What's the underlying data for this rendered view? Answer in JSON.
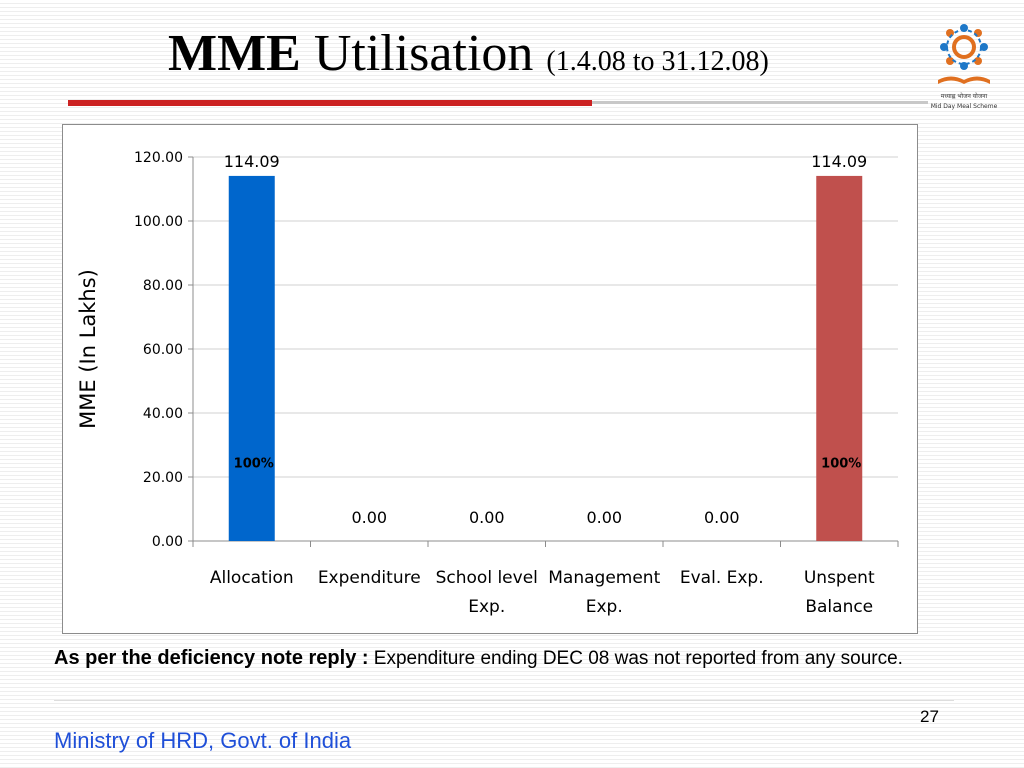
{
  "slide": {
    "title_main_bold": "MME",
    "title_main_rest": " Utilisation",
    "title_range": "(1.4.08 to 31.12.08)",
    "logo_text_hindi": "मध्याह्न भोजन योजना",
    "logo_text_english": "Mid Day Meal Scheme",
    "note_lead": "As per the deficiency note reply :",
    "note_text": " Expenditure ending DEC 08 was not reported from any source.",
    "page_number": "27",
    "footer": "Ministry of HRD, Govt. of India"
  },
  "colors": {
    "title_rule": "#cc2222",
    "allocation_bar": "#0066cc",
    "unspent_bar": "#c0504d",
    "footer_text": "#1f4fd8"
  },
  "chart_data": {
    "type": "bar",
    "categories": [
      "Allocation",
      "Expenditure",
      "School level Exp.",
      "Management Exp.",
      "Eval. Exp.",
      "Unspent Balance"
    ],
    "values": [
      114.09,
      0.0,
      0.0,
      0.0,
      0.0,
      114.09
    ],
    "value_labels": [
      "114.09",
      "0.00",
      "0.00",
      "0.00",
      "0.00",
      "114.09"
    ],
    "bar_colors": [
      "#0066cc",
      null,
      null,
      null,
      null,
      "#c0504d"
    ],
    "percent_labels": [
      "100%",
      null,
      null,
      null,
      null,
      "100%"
    ],
    "title": "",
    "xlabel": "",
    "ylabel": "MME (In Lakhs)",
    "ylim": [
      0,
      120
    ],
    "yticks": [
      "0.00",
      "20.00",
      "40.00",
      "60.00",
      "80.00",
      "100.00",
      "120.00"
    ],
    "grid": true,
    "legend": "none"
  }
}
